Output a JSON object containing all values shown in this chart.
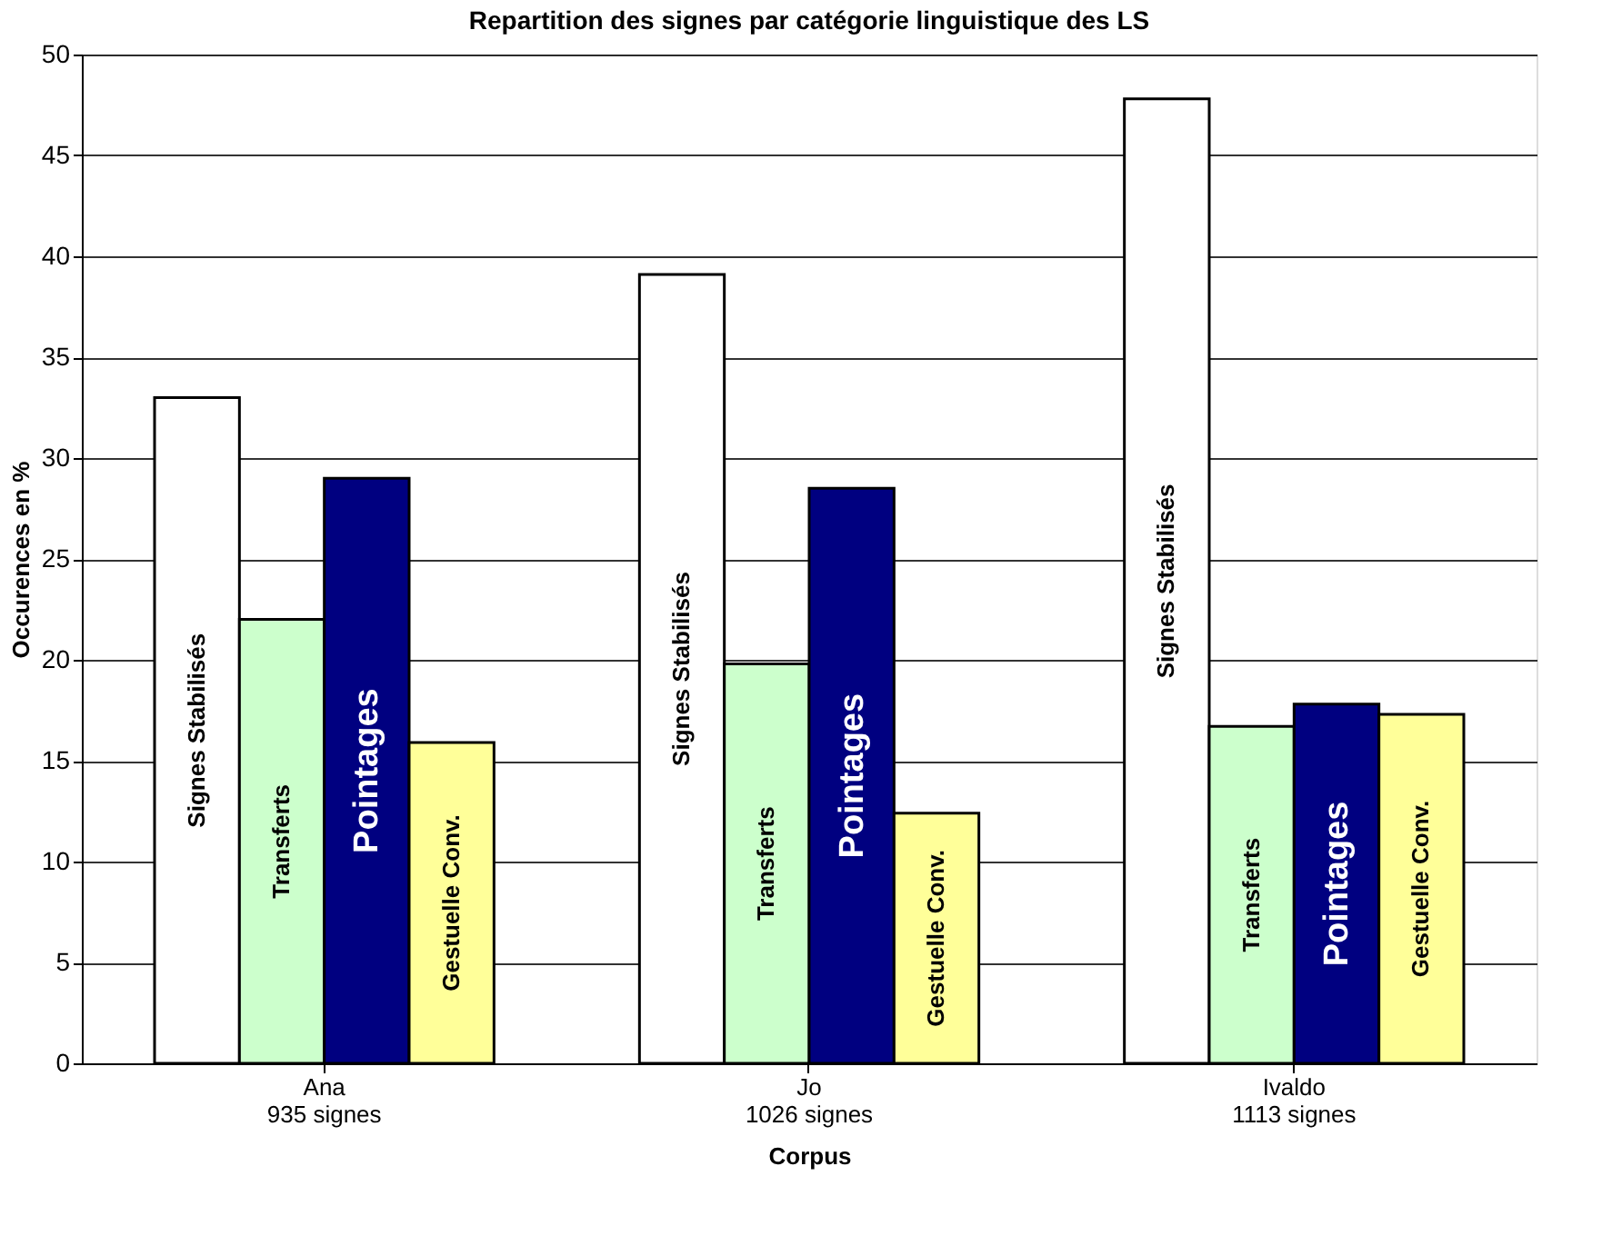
{
  "chart_data": {
    "type": "bar",
    "title": "Repartition des signes par catégorie linguistique des LS",
    "xlabel": "Corpus",
    "ylabel": "Occurences en %",
    "categories": [
      "Ana\n935 signes",
      "Jo\n1026 signes",
      "Ivaldo\n1113 signes"
    ],
    "series": [
      {
        "name": "Signes Stabilisés",
        "color": "#ffffff",
        "values": [
          33,
          39.1,
          47.8
        ]
      },
      {
        "name": "Transferts",
        "color": "#ccffcc",
        "values": [
          22,
          19.8,
          16.7
        ]
      },
      {
        "name": "Pointages",
        "color": "#000080",
        "values": [
          29,
          28.5,
          17.8
        ]
      },
      {
        "name": "Gestuelle Conv.",
        "color": "#ffff99",
        "values": [
          15.9,
          12.4,
          17.3
        ]
      }
    ],
    "ylim": [
      0,
      50
    ],
    "yticks": [
      0,
      5,
      10,
      15,
      20,
      25,
      30,
      35,
      40,
      45,
      50
    ],
    "grid": "y",
    "legend": false
  }
}
